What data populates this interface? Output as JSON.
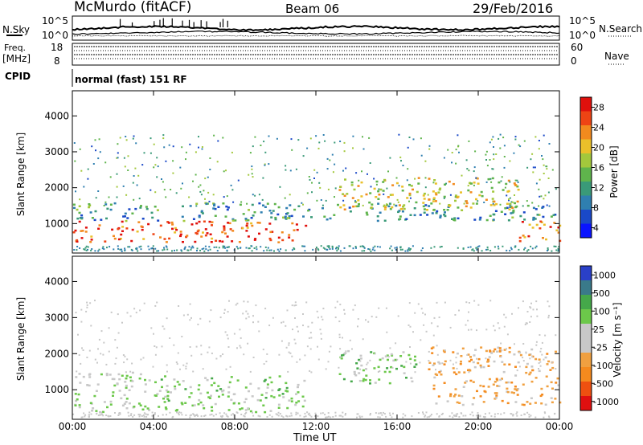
{
  "header": {
    "station": "McMurdo (fitACF)",
    "beam": "Beam 06",
    "date": "29/Feb/2016"
  },
  "status_panel": {
    "nsky_label": "N.Sky",
    "nsearch_label": "N.Search",
    "nsky_ticks": [
      "10^5",
      "10^0"
    ],
    "nsearch_ticks": [
      "10^5",
      "10^0"
    ],
    "freq_label_1": "Freq.",
    "freq_label_2": "[MHz]",
    "freq_ticks": [
      "18",
      "8"
    ],
    "nave_label": "Nave",
    "nave_ticks": [
      "60",
      "0"
    ],
    "cpid_label": "CPID",
    "cpid_value": "normal (fast) 151 RF"
  },
  "chart_data": [
    {
      "type": "heatmap",
      "title": "",
      "xlabel": "Time UT",
      "ylabel": "Slant Range [km]",
      "x_ticks": [
        "00:00",
        "04:00",
        "08:00",
        "12:00",
        "16:00",
        "20:00",
        "00:00"
      ],
      "x_range_hours": [
        0,
        24
      ],
      "y_ticks": [
        1000,
        2000,
        3000,
        4000
      ],
      "ylim": [
        180,
        4700
      ],
      "colorbar": {
        "label": "Power [dB]",
        "ticks": [
          "28",
          "24",
          "20",
          "16",
          "12",
          "8",
          "4"
        ],
        "range": [
          0,
          30
        ],
        "colors": [
          "#0a14ff",
          "#1a49c8",
          "#2f7fb0",
          "#3a9a78",
          "#5fb44c",
          "#a3c83c",
          "#eac02a",
          "#f28a1e",
          "#ee4414",
          "#e0100c"
        ]
      },
      "features": [
        {
          "t_start": 0.0,
          "t_end": 11.5,
          "range_low": 500,
          "range_high": 1100,
          "value": 26
        },
        {
          "t_start": 0.0,
          "t_end": 24.0,
          "range_low": 1100,
          "range_high": 1600,
          "value": 10
        },
        {
          "t_start": 13.0,
          "t_end": 22.0,
          "range_low": 1400,
          "range_high": 2300,
          "value": 18
        },
        {
          "t_start": 22.0,
          "t_end": 24.0,
          "range_low": 500,
          "range_high": 1100,
          "value": 24
        }
      ]
    },
    {
      "type": "heatmap",
      "title": "",
      "xlabel": "Time UT",
      "ylabel": "Slant Range [km]",
      "x_ticks": [
        "00:00",
        "04:00",
        "08:00",
        "12:00",
        "16:00",
        "20:00",
        "00:00"
      ],
      "x_range_hours": [
        0,
        24
      ],
      "y_ticks": [
        1000,
        2000,
        3000,
        4000
      ],
      "ylim": [
        180,
        4700
      ],
      "colorbar": {
        "label": "Velocity [m s⁻¹]",
        "ticks": [
          "1000",
          "500",
          "100",
          "25",
          "-25",
          "-100",
          "-500",
          "-1000"
        ],
        "range": [
          -1000,
          1000
        ],
        "colors": [
          "#e01010",
          "#ee5010",
          "#f48a1e",
          "#f0a040",
          "#c8c8c8",
          "#c8c8c8",
          "#6cc84a",
          "#45a84a",
          "#3a7a8a",
          "#2a40c8"
        ]
      },
      "features": [
        {
          "t_start": 0.0,
          "t_end": 4.0,
          "range_low": 400,
          "range_high": 1500,
          "value": 150
        },
        {
          "t_start": 4.0,
          "t_end": 11.5,
          "range_low": 400,
          "range_high": 1400,
          "value": 250
        },
        {
          "t_start": 13.0,
          "t_end": 17.0,
          "range_low": 1200,
          "range_high": 2100,
          "value": 300
        },
        {
          "t_start": 17.5,
          "t_end": 24.0,
          "range_low": 600,
          "range_high": 2200,
          "value": -300
        }
      ]
    }
  ]
}
